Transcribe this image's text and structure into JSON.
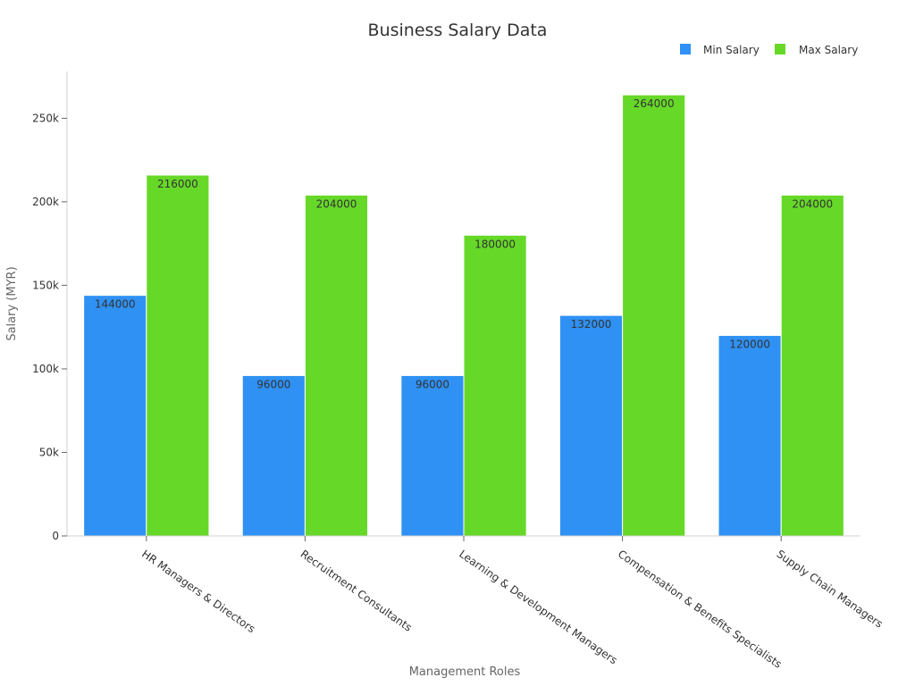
{
  "chart_data": {
    "type": "bar",
    "title": "Business Salary Data",
    "xlabel": "Management Roles",
    "ylabel": "Salary (MYR)",
    "categories": [
      "HR Managers & Directors",
      "Recruitment Consultants",
      "Learning & Development Managers",
      "Compensation & Benefits Specialists",
      "Supply Chain Managers"
    ],
    "series": [
      {
        "name": "Min Salary",
        "color": "#2f91f4",
        "values": [
          144000,
          96000,
          96000,
          132000,
          120000
        ]
      },
      {
        "name": "Max Salary",
        "color": "#66d928",
        "values": [
          216000,
          204000,
          180000,
          264000,
          204000
        ]
      }
    ],
    "ylim": [
      0,
      278000
    ],
    "yticks": [
      {
        "value": 0,
        "label": "0"
      },
      {
        "value": 50000,
        "label": "50k"
      },
      {
        "value": 100000,
        "label": "100k"
      },
      {
        "value": 150000,
        "label": "150k"
      },
      {
        "value": 200000,
        "label": "200k"
      },
      {
        "value": 250000,
        "label": "250k"
      }
    ],
    "grid": false,
    "legend_position": "top-right"
  }
}
